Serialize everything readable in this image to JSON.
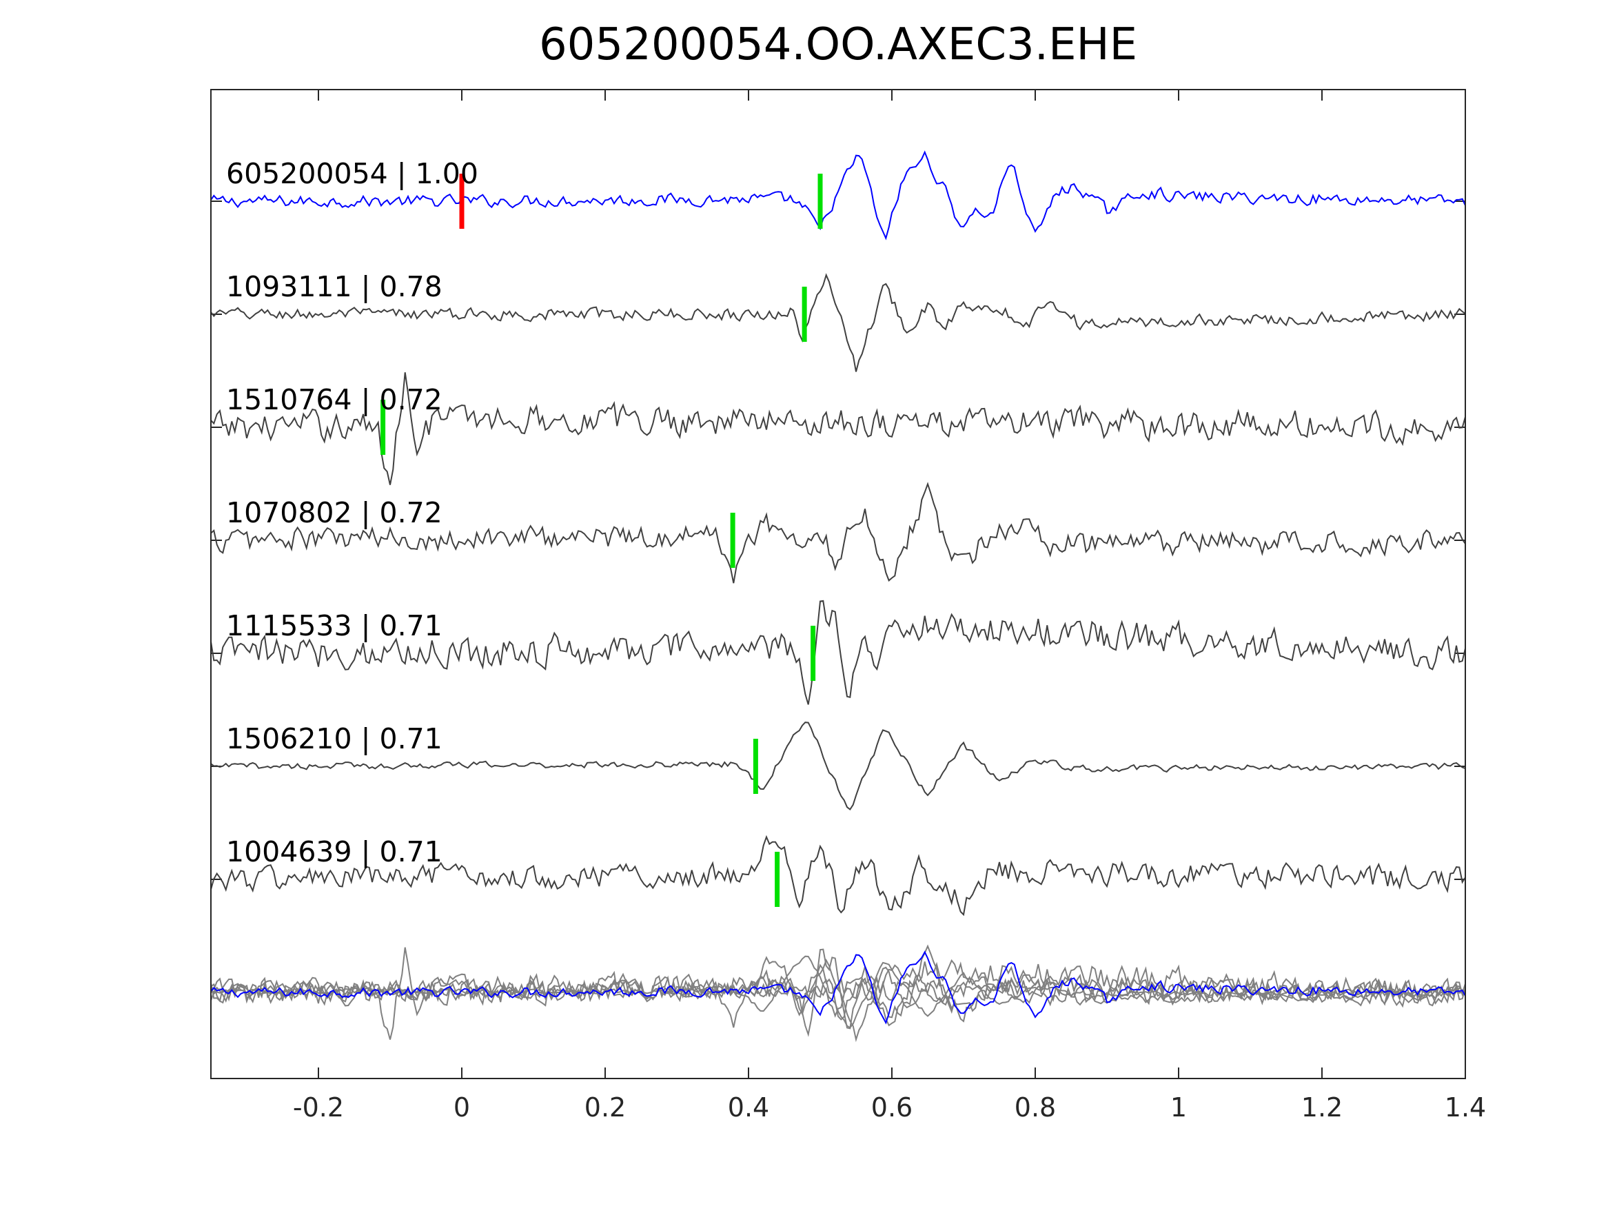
{
  "title": "605200054.OO.AXEC3.EHE",
  "chart_data": {
    "type": "line",
    "title": "605200054.OO.AXEC3.EHE",
    "xlabel": "",
    "ylabel": "",
    "xlim": [
      -0.35,
      1.4
    ],
    "xticks": [
      -0.2,
      0,
      0.2,
      0.4,
      0.6,
      0.8,
      1,
      1.2,
      1.4
    ],
    "xtick_labels": [
      "-0.2",
      "0",
      "0.2",
      "0.4",
      "0.6",
      "0.8",
      "1",
      "1.2",
      "1.4"
    ],
    "grid": false,
    "reference_pick_x": 0,
    "reference_pick_color": "#ff0000",
    "pick_color": "#00e000",
    "template_color": "#0000ff",
    "trace_color": "#404040",
    "stack_color": "#808080",
    "series": [
      {
        "name": "605200054",
        "correlation": "1.00",
        "label": "605200054 | 1.00",
        "pick_x": 0.5,
        "template": true,
        "waveform": [
          [
            -0.35,
            0
          ],
          [
            0.0,
            0
          ],
          [
            0.46,
            0.05
          ],
          [
            0.48,
            -0.2
          ],
          [
            0.5,
            -0.6
          ],
          [
            0.53,
            0.35
          ],
          [
            0.555,
            1.0
          ],
          [
            0.59,
            -0.85
          ],
          [
            0.615,
            0.45
          ],
          [
            0.645,
            0.95
          ],
          [
            0.675,
            0.2
          ],
          [
            0.695,
            -0.5
          ],
          [
            0.72,
            -0.2
          ],
          [
            0.74,
            -0.3
          ],
          [
            0.765,
            0.9
          ],
          [
            0.8,
            -0.75
          ],
          [
            0.83,
            0.2
          ],
          [
            0.86,
            0.3
          ],
          [
            0.9,
            -0.2
          ],
          [
            0.95,
            0.2
          ],
          [
            1.0,
            0.1
          ],
          [
            1.4,
            0
          ]
        ]
      },
      {
        "name": "1093111",
        "correlation": "0.78",
        "label": "1093111 | 0.78",
        "pick_x": 0.478,
        "template": false,
        "waveform": [
          [
            -0.35,
            0
          ],
          [
            0.44,
            0
          ],
          [
            0.46,
            0.1
          ],
          [
            0.475,
            -0.5
          ],
          [
            0.51,
            0.85
          ],
          [
            0.55,
            -1.1
          ],
          [
            0.59,
            0.6
          ],
          [
            0.62,
            -0.3
          ],
          [
            0.65,
            0.15
          ],
          [
            0.67,
            -0.3
          ],
          [
            0.7,
            0.2
          ],
          [
            0.74,
            0.2
          ],
          [
            0.79,
            -0.2
          ],
          [
            0.82,
            0.35
          ],
          [
            0.86,
            -0.2
          ],
          [
            1.4,
            0
          ]
        ]
      },
      {
        "name": "1510764",
        "correlation": "0.72",
        "label": "1510764 | 0.72",
        "pick_x": -0.11,
        "template": false,
        "waveform": [
          [
            -0.35,
            0
          ],
          [
            -0.12,
            0.05
          ],
          [
            -0.1,
            -1.1
          ],
          [
            -0.08,
            1.1
          ],
          [
            -0.06,
            -0.4
          ],
          [
            -0.04,
            0.2
          ],
          [
            1.4,
            0
          ]
        ]
      },
      {
        "name": "1070802",
        "correlation": "0.72",
        "label": "1070802 | 0.72",
        "pick_x": 0.378,
        "template": false,
        "waveform": [
          [
            -0.35,
            0
          ],
          [
            0.36,
            0.1
          ],
          [
            0.38,
            -0.75
          ],
          [
            0.42,
            0.5
          ],
          [
            0.47,
            -0.2
          ],
          [
            0.5,
            0.25
          ],
          [
            0.52,
            -0.4
          ],
          [
            0.56,
            0.7
          ],
          [
            0.595,
            -0.8
          ],
          [
            0.65,
            1.0
          ],
          [
            0.69,
            -0.55
          ],
          [
            0.74,
            0.1
          ],
          [
            0.78,
            0.35
          ],
          [
            0.82,
            -0.1
          ],
          [
            1.4,
            0
          ]
        ]
      },
      {
        "name": "1115533",
        "correlation": "0.71",
        "label": "1115533 | 0.71",
        "pick_x": 0.49,
        "template": false,
        "waveform": [
          [
            -0.35,
            0
          ],
          [
            0.46,
            0.1
          ],
          [
            0.485,
            -0.9
          ],
          [
            0.5,
            0.85
          ],
          [
            0.52,
            0.95
          ],
          [
            0.54,
            -0.9
          ],
          [
            0.56,
            0.4
          ],
          [
            0.58,
            -0.3
          ],
          [
            0.6,
            0.6
          ],
          [
            1.4,
            0
          ]
        ]
      },
      {
        "name": "1506210",
        "correlation": "0.71",
        "label": "1506210 | 0.71",
        "pick_x": 0.41,
        "template": false,
        "waveform": [
          [
            -0.35,
            0
          ],
          [
            0.38,
            0.05
          ],
          [
            0.42,
            -0.45
          ],
          [
            0.48,
            1.0
          ],
          [
            0.54,
            -0.95
          ],
          [
            0.59,
            0.8
          ],
          [
            0.65,
            -0.6
          ],
          [
            0.7,
            0.45
          ],
          [
            0.75,
            -0.3
          ],
          [
            0.8,
            0.15
          ],
          [
            0.85,
            -0.05
          ],
          [
            1.4,
            0
          ]
        ]
      },
      {
        "name": "1004639",
        "correlation": "0.71",
        "label": "1004639 | 0.71",
        "pick_x": 0.44,
        "template": false,
        "waveform": [
          [
            -0.35,
            0
          ],
          [
            0.4,
            0.1
          ],
          [
            0.44,
            1.0
          ],
          [
            0.47,
            -0.55
          ],
          [
            0.5,
            0.75
          ],
          [
            0.53,
            -0.7
          ],
          [
            0.56,
            0.55
          ],
          [
            0.6,
            -0.6
          ],
          [
            0.64,
            0.3
          ],
          [
            0.7,
            -0.5
          ],
          [
            0.74,
            0.2
          ],
          [
            1.4,
            0
          ]
        ]
      }
    ]
  }
}
